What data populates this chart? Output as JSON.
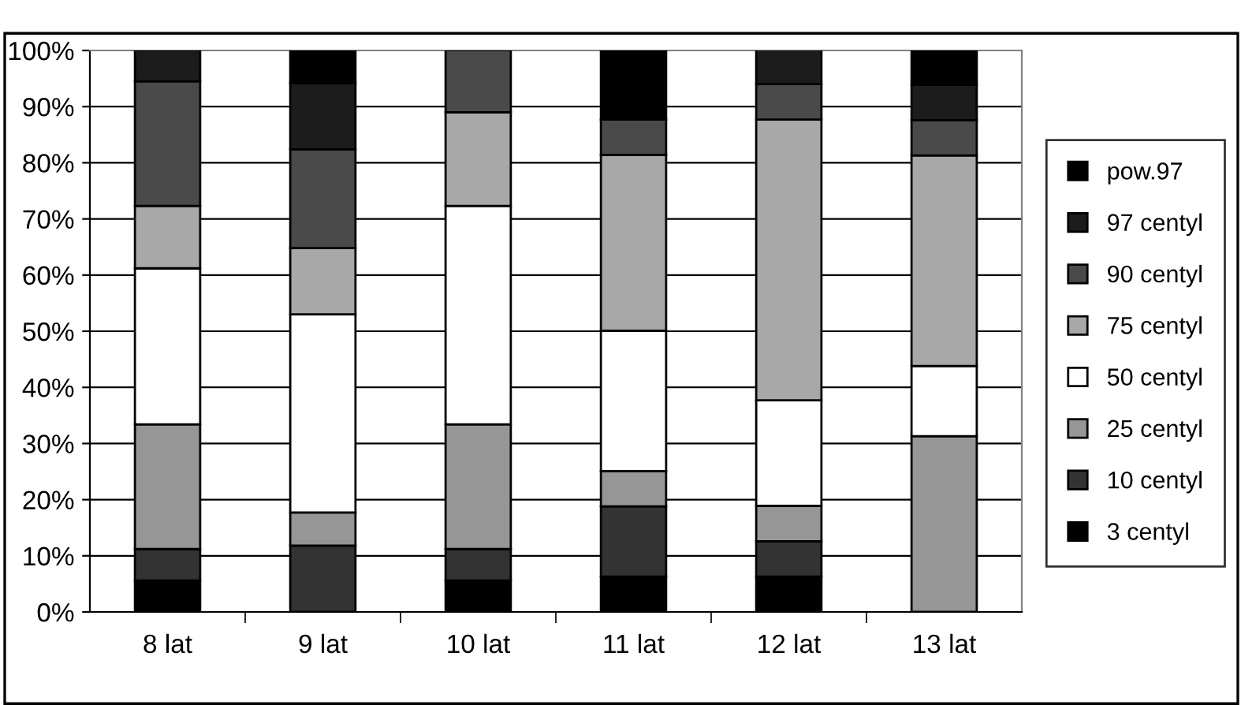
{
  "chart_data": {
    "type": "bar",
    "stacked": true,
    "categories": [
      "8 lat",
      "9 lat",
      "10 lat",
      "11 lat",
      "12 lat",
      "13 lat"
    ],
    "series": [
      {
        "name": "3 centyl",
        "color": "#000000",
        "values": [
          5.6,
          0,
          5.6,
          6.3,
          6.3,
          0
        ]
      },
      {
        "name": "10 centyl",
        "color": "#333333",
        "values": [
          5.6,
          11.8,
          5.6,
          12.5,
          6.3,
          0
        ]
      },
      {
        "name": "25 centyl",
        "color": "#969696",
        "values": [
          22.2,
          5.9,
          22.2,
          6.3,
          6.3,
          31.3
        ]
      },
      {
        "name": "50 centyl",
        "color": "#ffffff",
        "values": [
          27.8,
          35.3,
          38.9,
          25,
          18.8,
          12.5
        ]
      },
      {
        "name": "75 centyl",
        "color": "#a8a8a8",
        "values": [
          11.1,
          11.8,
          16.7,
          31.3,
          50,
          37.5
        ]
      },
      {
        "name": "90 centyl",
        "color": "#4a4a4a",
        "values": [
          22.2,
          17.6,
          11.1,
          6.3,
          6.3,
          6.3
        ]
      },
      {
        "name": "97 centyl",
        "color": "#1c1c1c",
        "values": [
          5.6,
          11.8,
          0,
          0,
          6.3,
          6.3
        ]
      },
      {
        "name": "pow.97",
        "color": "#000000",
        "values": [
          0,
          5.9,
          0,
          12.5,
          0,
          6.3
        ]
      }
    ],
    "ylim": [
      0,
      100
    ],
    "yticks": [
      {
        "value": 0,
        "label": "0%"
      },
      {
        "value": 10,
        "label": "10%"
      },
      {
        "value": 20,
        "label": "20%"
      },
      {
        "value": 30,
        "label": "30%"
      },
      {
        "value": 40,
        "label": "40%"
      },
      {
        "value": 50,
        "label": "50%"
      },
      {
        "value": 60,
        "label": "60%"
      },
      {
        "value": 70,
        "label": "70%"
      },
      {
        "value": 80,
        "label": "80%"
      },
      {
        "value": 90,
        "label": "90%"
      },
      {
        "value": 100,
        "label": "100%"
      }
    ],
    "grid": "y",
    "legend": "right"
  }
}
